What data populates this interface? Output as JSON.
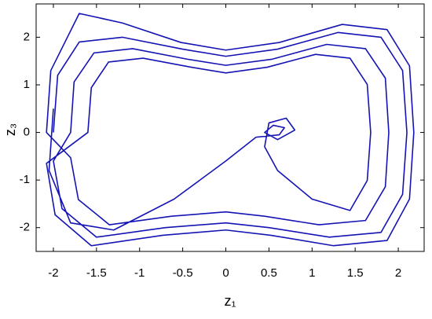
{
  "chart_data": {
    "type": "line",
    "xlabel": "z₁",
    "ylabel": "z₃",
    "color": "#1414b4",
    "xlim": [
      -2.2,
      2.3
    ],
    "ylim": [
      -2.5,
      2.7
    ],
    "xticks": [
      -2,
      -1.5,
      -1,
      -0.5,
      0,
      0.5,
      1,
      1.5,
      2
    ],
    "yticks": [
      -2,
      -1,
      0,
      1,
      2
    ],
    "x": [
      -2,
      -1.95,
      -1.7,
      -1.2,
      -0.5,
      0,
      0.6,
      1.3,
      1.8,
      2.05,
      2.1,
      2.05,
      1.8,
      1.2,
      0.5,
      0,
      -0.7,
      -1.5,
      -1.9,
      -2,
      -1.8,
      -1.76,
      -1.53,
      -1.08,
      -0.45,
      0,
      0.54,
      1.17,
      1.62,
      1.85,
      1.89,
      1.85,
      1.62,
      1.08,
      0.45,
      0,
      -0.63,
      -1.35,
      -1.71,
      -1.8,
      -2.08,
      -2.03,
      -1.7,
      -1.2,
      -0.52,
      0,
      0.62,
      1.35,
      1.87,
      2.13,
      2.18,
      2.13,
      1.87,
      1.25,
      0.52,
      0,
      -0.73,
      -1.56,
      -1.98,
      -2.08,
      -1.6,
      -1.56,
      -1.36,
      -0.96,
      -0.4,
      0,
      0.48,
      1.04,
      1.44,
      1.64,
      1.68,
      1.64,
      1.44,
      1.0,
      0.6,
      0.45,
      0.5,
      0.7,
      0.8,
      0.6,
      0.45,
      0.55,
      0.68,
      0.62,
      0.35,
      0.0,
      -0.6,
      -1.3,
      -1.8,
      -2.05,
      -2.0
    ],
    "y": [
      0,
      1.2,
      1.9,
      2.0,
      1.75,
      1.6,
      1.75,
      2.1,
      2.0,
      1.3,
      0,
      -1.3,
      -2.1,
      -2.2,
      -2.0,
      -1.9,
      -2.0,
      -2.2,
      -1.6,
      -0.6,
      0,
      1.06,
      1.67,
      1.76,
      1.54,
      1.41,
      1.54,
      1.85,
      1.76,
      1.14,
      0,
      -1.14,
      -1.85,
      -1.94,
      -1.76,
      -1.67,
      -1.76,
      -1.94,
      -1.41,
      -0.53,
      0,
      1.3,
      2.5,
      2.3,
      1.89,
      1.73,
      1.89,
      2.27,
      2.16,
      1.4,
      0,
      -1.4,
      -2.27,
      -2.38,
      -2.16,
      -2.05,
      -2.16,
      -2.38,
      -1.73,
      -0.65,
      0,
      0.94,
      1.48,
      1.56,
      1.37,
      1.25,
      1.37,
      1.64,
      1.56,
      1.01,
      0,
      -1.01,
      -1.64,
      -1.4,
      -0.8,
      -0.3,
      0.2,
      0.3,
      0.05,
      -0.15,
      0,
      0.15,
      0.1,
      -0.05,
      -0.1,
      -0.6,
      -1.4,
      -2.05,
      -1.9,
      -0.8,
      0.5
    ]
  }
}
